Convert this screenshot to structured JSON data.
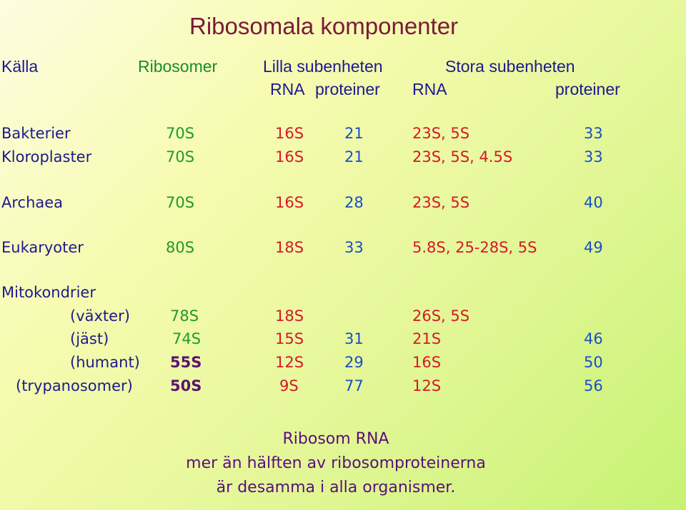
{
  "title": "Ribosomala komponenter",
  "header": {
    "kalla": "Källa",
    "ribosomer": "Ribosomer",
    "lilla": "Lilla subenheten",
    "stora": "Stora subenheten",
    "lilla_rna": "RNA",
    "lilla_proteiner": "proteiner",
    "stora_rna": "RNA",
    "stora_proteiner": "proteiner"
  },
  "rows": [
    {
      "source": "Bakterier",
      "ribosome": "70S",
      "small_rna": "16S",
      "small_prot": "21",
      "large_rna": "23S, 5S",
      "large_prot": "33"
    },
    {
      "source": "Kloroplaster",
      "ribosome": "70S",
      "small_rna": "16S",
      "small_prot": "21",
      "large_rna": "23S, 5S, 4.5S",
      "large_prot": "33"
    },
    {
      "source": "Archaea",
      "ribosome": "70S",
      "small_rna": "16S",
      "small_prot": "28",
      "large_rna": "23S, 5S",
      "large_prot": "40"
    },
    {
      "source": "Eukaryoter",
      "ribosome": "80S",
      "small_rna": "18S",
      "small_prot": "33",
      "large_rna": "5.8S, 25-28S, 5S",
      "large_prot": "49"
    }
  ],
  "mito": {
    "label": "Mitokondrier",
    "rows": [
      {
        "source": "(växter)",
        "ribosome": "78S",
        "small_rna": "18S",
        "small_prot": "",
        "large_rna": "26S, 5S",
        "large_prot": ""
      },
      {
        "source": "(jäst)",
        "ribosome": "74S",
        "small_rna": "15S",
        "small_prot": "31",
        "large_rna": "21S",
        "large_prot": "46"
      },
      {
        "source": "(humant)",
        "ribosome": "55S",
        "small_rna": "12S",
        "small_prot": "29",
        "large_rna": "16S",
        "large_prot": "50"
      },
      {
        "source": "(trypanosomer)",
        "ribosome": "50S",
        "small_rna": "9S",
        "small_prot": "77",
        "large_rna": "12S",
        "large_prot": "56"
      }
    ]
  },
  "notes": {
    "line1": "Ribosom RNA",
    "line2": "mer än hälften av ribosomproteinerna",
    "line3": "är desamma i alla organismer."
  },
  "colors": {
    "title": "#7a1a3a",
    "source": "#1c1a8c",
    "ribosome": "#1d9a2a",
    "rna": "#d6182a",
    "protein": "#1a4fc4",
    "notes": "#58107a"
  }
}
